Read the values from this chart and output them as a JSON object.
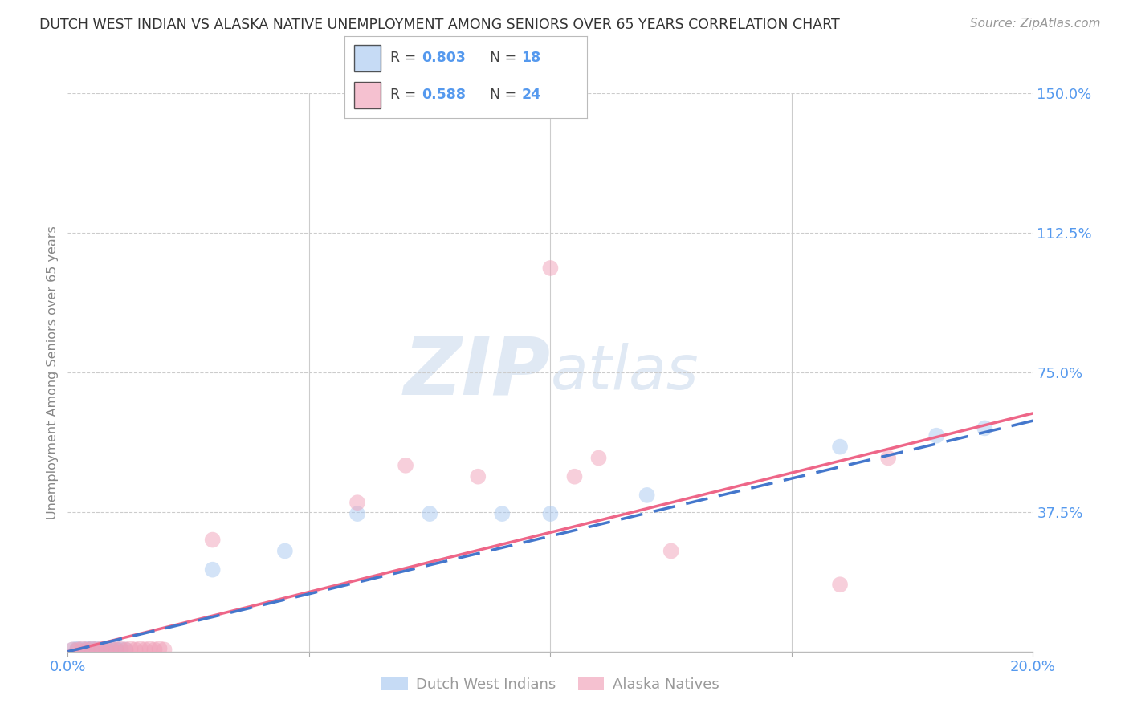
{
  "title": "DUTCH WEST INDIAN VS ALASKA NATIVE UNEMPLOYMENT AMONG SENIORS OVER 65 YEARS CORRELATION CHART",
  "source": "Source: ZipAtlas.com",
  "ylabel": "Unemployment Among Seniors over 65 years",
  "xlim": [
    0.0,
    0.2
  ],
  "ylim": [
    0.0,
    1.5
  ],
  "blue_color": "#a8c8f0",
  "pink_color": "#f0a0b8",
  "blue_line_color": "#4477cc",
  "pink_line_color": "#ee6688",
  "grid_color": "#cccccc",
  "title_color": "#333333",
  "source_color": "#999999",
  "axis_label_color": "#888888",
  "right_tick_color": "#5599ee",
  "watermark_color": "#ddeeff",
  "dwi_x": [
    0.001,
    0.002,
    0.002,
    0.003,
    0.004,
    0.004,
    0.005,
    0.005,
    0.006,
    0.006,
    0.007,
    0.008,
    0.008,
    0.009,
    0.01,
    0.01,
    0.011,
    0.012,
    0.03,
    0.045,
    0.06,
    0.075,
    0.09,
    0.1,
    0.12,
    0.16,
    0.18,
    0.19
  ],
  "dwi_y": [
    0.005,
    0.005,
    0.008,
    0.005,
    0.005,
    0.008,
    0.005,
    0.008,
    0.005,
    0.008,
    0.005,
    0.005,
    0.008,
    0.005,
    0.005,
    0.008,
    0.005,
    0.005,
    0.22,
    0.27,
    0.37,
    0.37,
    0.37,
    0.37,
    0.42,
    0.55,
    0.58,
    0.6
  ],
  "an_x": [
    0.001,
    0.002,
    0.003,
    0.004,
    0.005,
    0.006,
    0.007,
    0.008,
    0.009,
    0.01,
    0.011,
    0.012,
    0.013,
    0.014,
    0.015,
    0.016,
    0.017,
    0.018,
    0.019,
    0.02,
    0.03,
    0.06,
    0.07,
    0.085,
    0.1,
    0.105,
    0.11,
    0.125,
    0.16,
    0.17
  ],
  "an_y": [
    0.005,
    0.005,
    0.008,
    0.005,
    0.008,
    0.005,
    0.008,
    0.005,
    0.008,
    0.005,
    0.008,
    0.005,
    0.008,
    0.005,
    0.008,
    0.005,
    0.008,
    0.005,
    0.008,
    0.005,
    0.3,
    0.4,
    0.5,
    0.47,
    1.03,
    0.47,
    0.52,
    0.27,
    0.18,
    0.52
  ],
  "blue_R": "0.803",
  "blue_N": "18",
  "pink_R": "0.588",
  "pink_N": "24",
  "ytick_vals": [
    0.0,
    0.375,
    0.75,
    1.125,
    1.5
  ],
  "ytick_labels": [
    "",
    "37.5%",
    "75.0%",
    "112.5%",
    "150.0%"
  ],
  "xtick_vals": [
    0.0,
    0.05,
    0.1,
    0.15,
    0.2
  ],
  "xtick_labels": [
    "0.0%",
    "",
    "",
    "",
    "20.0%"
  ]
}
